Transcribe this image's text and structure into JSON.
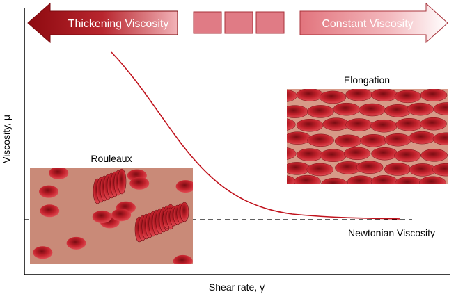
{
  "arrows": {
    "left": "Thickening Viscosity",
    "right": "Constant Viscosity"
  },
  "axes": {
    "y_label": "Viscosity, μ",
    "x_label": "Shear rate, γ̇"
  },
  "images": [
    {
      "label": "Rouleaux"
    },
    {
      "label": "Elongation"
    }
  ],
  "reference_line": {
    "label": "Newtonian Viscosity"
  }
}
